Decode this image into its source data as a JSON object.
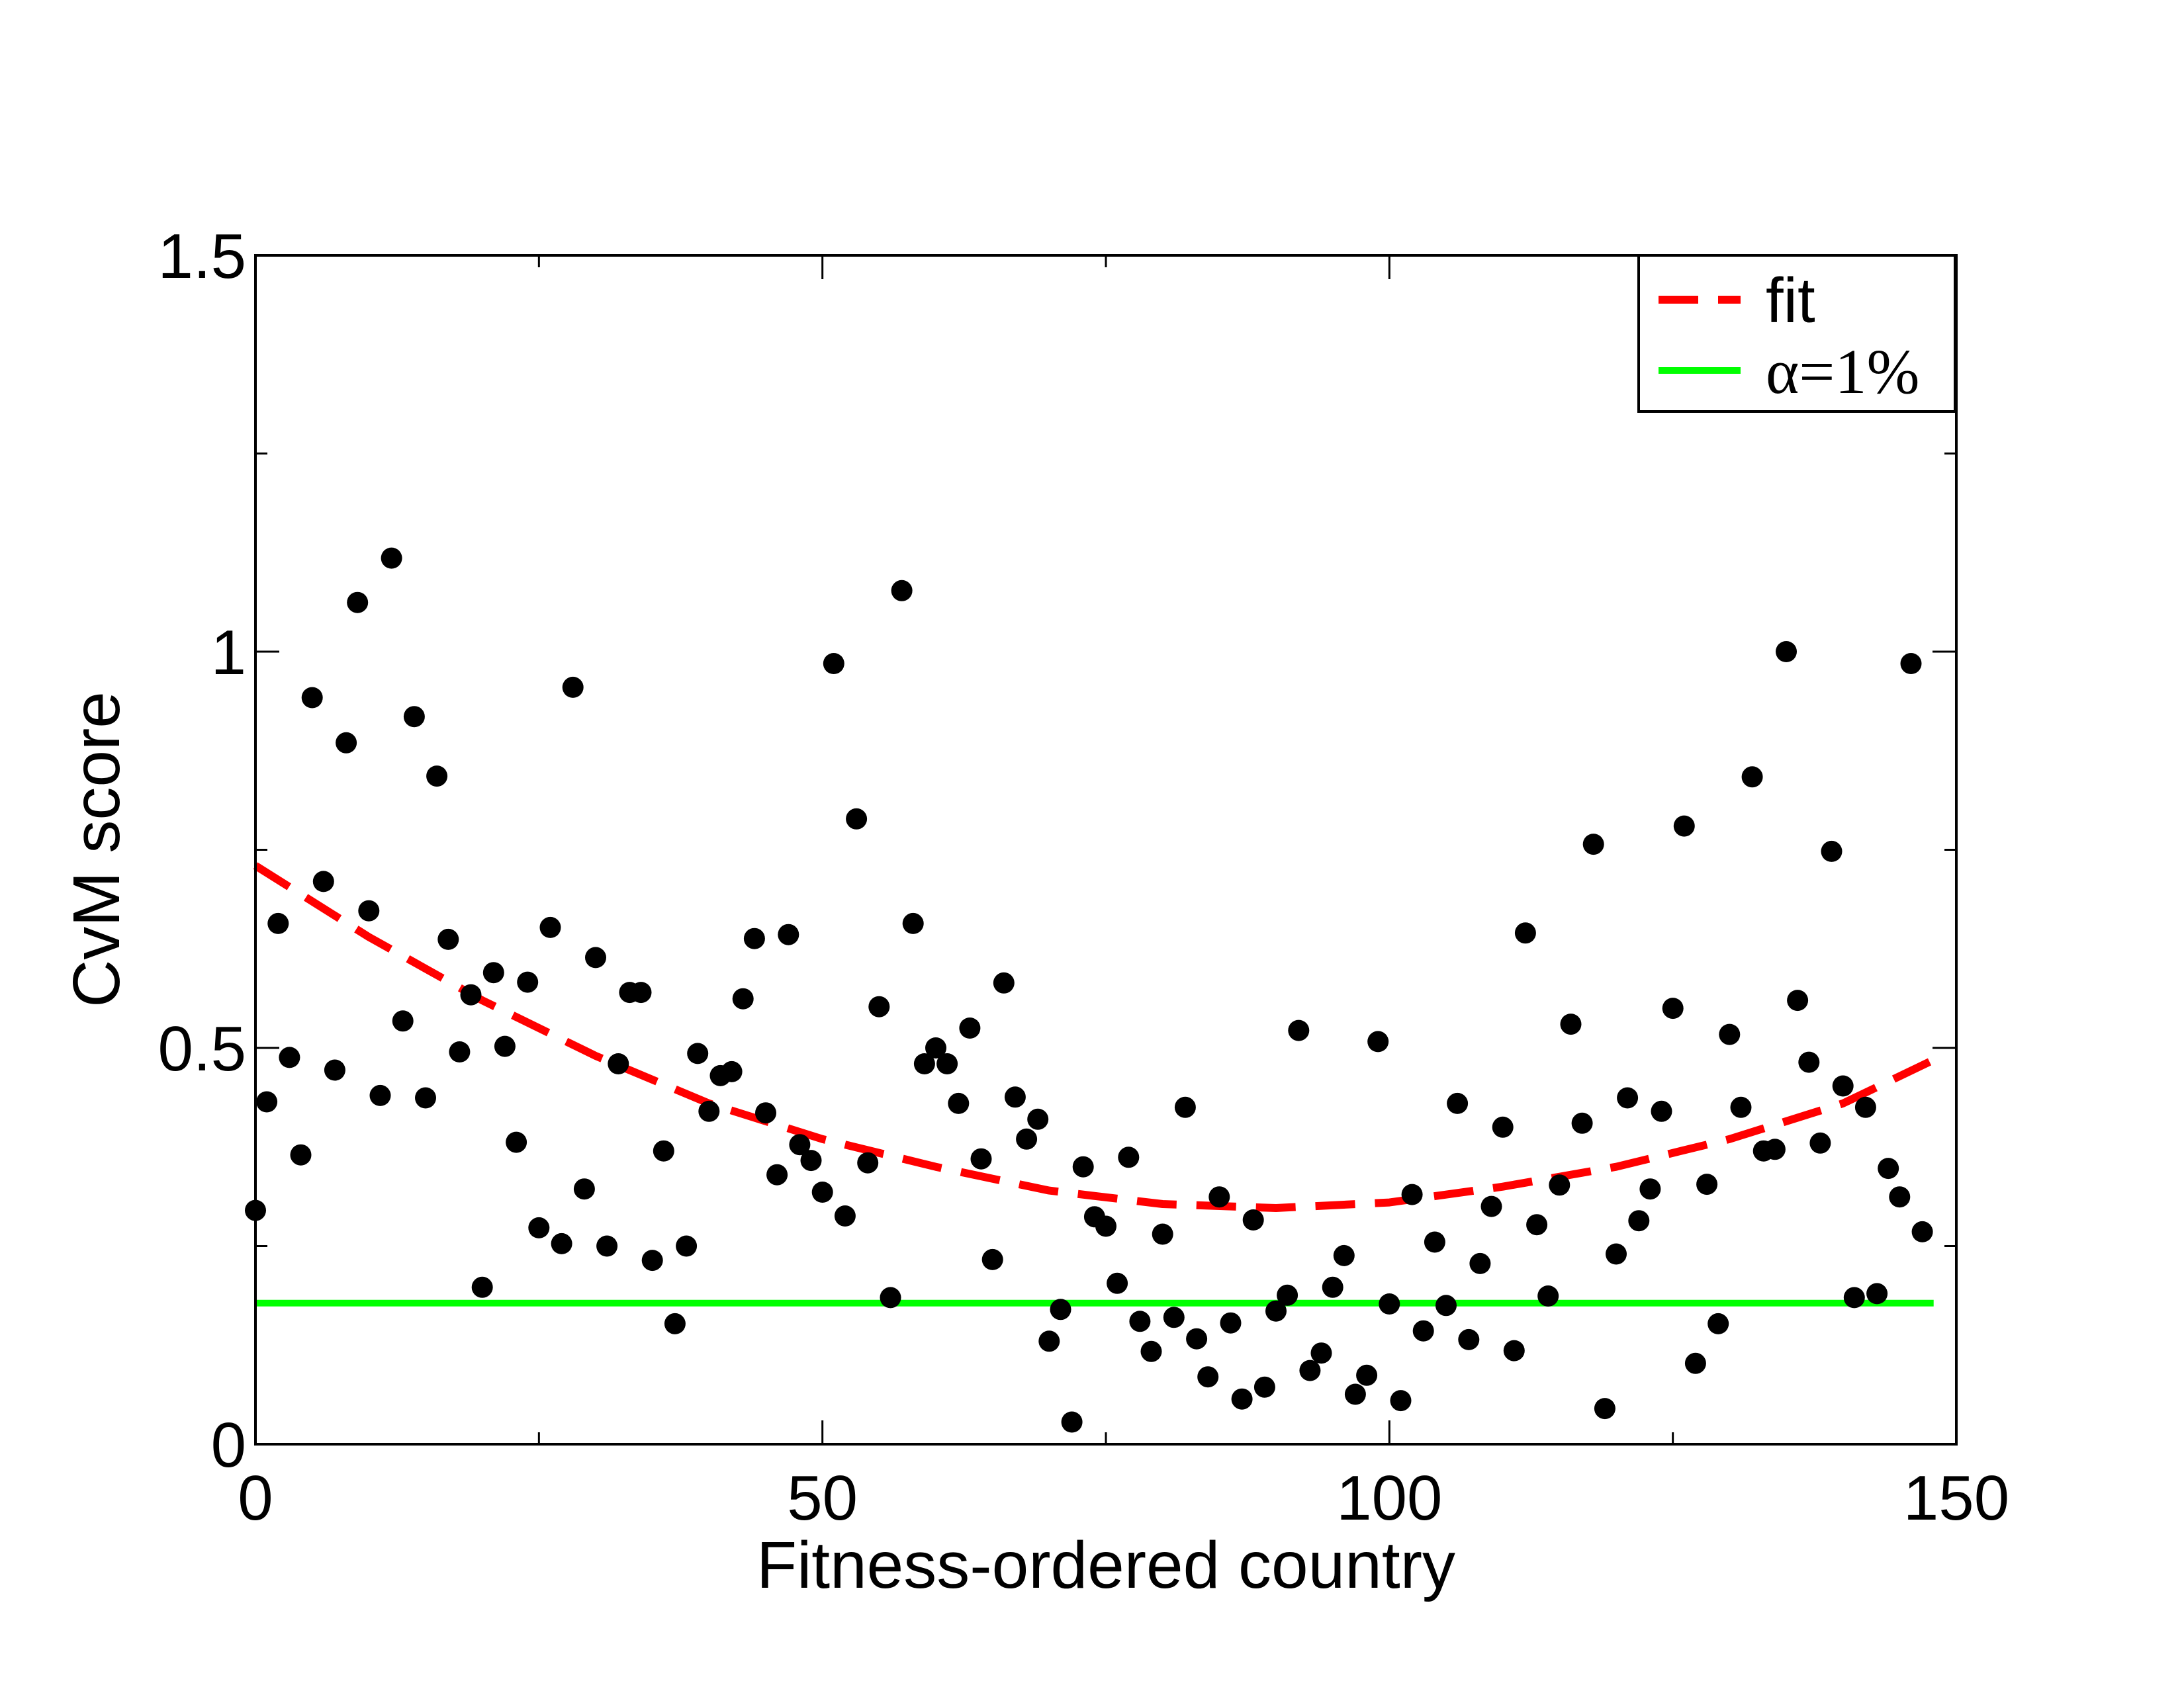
{
  "chart_data": {
    "type": "scatter",
    "xlabel": "Fitness-ordered country",
    "ylabel": "CvM score",
    "xlim": [
      0,
      150
    ],
    "ylim": [
      0,
      1.5
    ],
    "x_ticks": [
      0,
      50,
      100,
      150
    ],
    "x_tick_labels": [
      "0",
      "50",
      "100",
      "150"
    ],
    "y_ticks": [
      0,
      0.5,
      1,
      1.5
    ],
    "y_tick_labels": [
      "0",
      "0.5",
      "1",
      "1.5"
    ],
    "grid": false,
    "legend_position": "top-right",
    "points": {
      "color": "#000000",
      "x": [
        0,
        1,
        2,
        3,
        4,
        5,
        6,
        7,
        8,
        9,
        10,
        11,
        12,
        13,
        14,
        15,
        16,
        17,
        18,
        19,
        20,
        21,
        22,
        23,
        24,
        25,
        26,
        27,
        28,
        29,
        30,
        31,
        32,
        33,
        34,
        35,
        36,
        37,
        38,
        39,
        40,
        41,
        42,
        43,
        44,
        45,
        46,
        47,
        48,
        49,
        50,
        51,
        52,
        53,
        54,
        55,
        56,
        57,
        58,
        59,
        60,
        61,
        62,
        63,
        64,
        65,
        66,
        67,
        68,
        69,
        70,
        71,
        72,
        73,
        74,
        75,
        76,
        77,
        78,
        79,
        80,
        81,
        82,
        83,
        84,
        85,
        86,
        87,
        88,
        89,
        90,
        91,
        92,
        93,
        94,
        95,
        96,
        97,
        98,
        99,
        100,
        101,
        102,
        103,
        104,
        105,
        106,
        107,
        108,
        109,
        110,
        111,
        112,
        113,
        114,
        115,
        116,
        117,
        118,
        119,
        120,
        121,
        122,
        123,
        124,
        125,
        126,
        127,
        128,
        129,
        130,
        131,
        132,
        133,
        134,
        135,
        136,
        137,
        138,
        139,
        140,
        141,
        142,
        143,
        144,
        145,
        146,
        147
      ],
      "y": [
        0.295,
        0.432,
        0.657,
        0.488,
        0.365,
        0.942,
        0.71,
        0.472,
        0.885,
        1.062,
        0.673,
        0.44,
        1.118,
        0.534,
        0.918,
        0.437,
        0.843,
        0.637,
        0.495,
        0.567,
        0.198,
        0.595,
        0.502,
        0.381,
        0.583,
        0.273,
        0.652,
        0.253,
        0.955,
        0.322,
        0.614,
        0.25,
        0.48,
        0.57,
        0.57,
        0.232,
        0.37,
        0.152,
        0.25,
        0.493,
        0.42,
        0.465,
        0.47,
        0.562,
        0.638,
        0.418,
        0.34,
        0.643,
        0.378,
        0.358,
        0.318,
        0.985,
        0.288,
        0.789,
        0.355,
        0.552,
        0.185,
        1.077,
        0.657,
        0.48,
        0.5,
        0.48,
        0.43,
        0.525,
        0.36,
        0.233,
        0.582,
        0.438,
        0.385,
        0.41,
        0.13,
        0.17,
        0.028,
        0.35,
        0.287,
        0.275,
        0.203,
        0.362,
        0.155,
        0.117,
        0.265,
        0.16,
        0.425,
        0.133,
        0.085,
        0.312,
        0.153,
        0.057,
        0.283,
        0.072,
        0.168,
        0.188,
        0.522,
        0.093,
        0.115,
        0.198,
        0.238,
        0.063,
        0.087,
        0.508,
        0.177,
        0.055,
        0.315,
        0.143,
        0.255,
        0.175,
        0.43,
        0.132,
        0.228,
        0.3,
        0.4,
        0.118,
        0.645,
        0.277,
        0.187,
        0.327,
        0.53,
        0.405,
        0.757,
        0.045,
        0.24,
        0.437,
        0.282,
        0.322,
        0.42,
        0.55,
        0.78,
        0.102,
        0.328,
        0.152,
        0.517,
        0.425,
        0.842,
        0.37,
        0.372,
        1.0,
        0.56,
        0.482,
        0.38,
        0.748,
        0.452,
        0.185,
        0.425,
        0.19,
        0.348,
        0.312,
        0.985,
        0.268
      ]
    },
    "series": [
      {
        "name": "fit",
        "style": "dashed",
        "color": "#ff0000",
        "x": [
          0,
          10,
          20,
          30,
          40,
          50,
          60,
          70,
          80,
          90,
          100,
          110,
          120,
          130,
          140,
          148
        ],
        "y": [
          0.73,
          0.64,
          0.56,
          0.49,
          0.43,
          0.385,
          0.35,
          0.32,
          0.303,
          0.298,
          0.305,
          0.325,
          0.35,
          0.385,
          0.43,
          0.485
        ]
      },
      {
        "name": "α=1%",
        "style": "solid",
        "color": "#00ff00",
        "x": [
          0,
          148
        ],
        "y": [
          0.178,
          0.178
        ]
      }
    ]
  }
}
